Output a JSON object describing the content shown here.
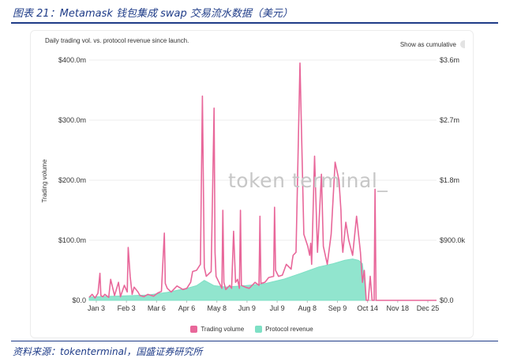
{
  "report": {
    "title": "图表 21：Metamask 钱包集成 swap 交易流水数据（美元）",
    "source": "资料来源：tokenterminal，国盛证券研究所"
  },
  "card": {
    "subtitle": "Daily trading vol. vs. protocol revenue since launch.",
    "cumulative_label": "Show as cumulative",
    "watermark": "token terminal_"
  },
  "colors": {
    "trading_volume": "#e8679a",
    "protocol_revenue": "#7ee0c5",
    "heading": "#1f3c88"
  },
  "chart_data": {
    "type": "area",
    "ylabel": "Trading volume",
    "left_axis": {
      "ticks": [
        "$0.0",
        "$100.0m",
        "$200.0m",
        "$300.0m",
        "$400.0m"
      ],
      "ylim": [
        0,
        400
      ]
    },
    "right_axis": {
      "ticks": [
        "$0.0",
        "$900.0k",
        "$1.8m",
        "$2.7m",
        "$3.6m"
      ],
      "ylim": [
        0,
        3.6
      ]
    },
    "x_ticks": [
      "Jan 3",
      "Feb 3",
      "Mar 6",
      "Apr 6",
      "May 8",
      "Jun 9",
      "Jul 9",
      "Aug 8",
      "Sep 9",
      "Oct 14",
      "Nov 18",
      "Dec 25"
    ],
    "grid": true,
    "legend_position": "bottom",
    "series": [
      {
        "name": "Trading volume",
        "unit": "$m",
        "x": [
          0,
          3,
          6,
          9,
          11,
          12,
          14,
          16,
          20,
          22,
          26,
          30,
          32,
          36,
          39,
          40,
          42,
          44,
          46,
          50,
          52,
          56,
          60,
          66,
          70,
          74,
          77,
          78,
          80,
          84,
          90,
          96,
          100,
          104,
          106,
          110,
          114,
          116,
          118,
          120,
          125,
          128,
          129,
          130,
          133,
          136,
          137,
          138,
          140,
          144,
          146,
          148,
          150,
          152,
          154,
          155,
          156,
          160,
          164,
          170,
          174,
          175,
          176,
          180,
          184,
          189,
          190,
          191,
          194,
          198,
          202,
          207,
          208,
          209,
          212,
          216,
          220,
          224,
          226,
          227,
          228,
          231,
          234,
          238,
          240,
          244,
          248,
          252,
          256,
          258,
          259,
          260,
          263,
          266,
          270,
          274,
          277,
          278,
          280,
          282,
          284,
          286,
          288,
          290,
          292,
          293,
          294,
          296,
          298,
          300,
          302,
          304,
          306,
          308,
          310,
          312,
          314,
          316,
          318,
          320,
          322,
          324,
          326,
          328,
          330,
          332,
          334,
          336,
          338,
          340,
          342,
          344,
          346,
          348,
          350,
          352,
          354,
          356
        ],
        "values": [
          5,
          10,
          4,
          12,
          45,
          8,
          6,
          10,
          5,
          35,
          8,
          30,
          6,
          25,
          14,
          88,
          40,
          10,
          22,
          14,
          8,
          6,
          10,
          7,
          12,
          15,
          112,
          28,
          20,
          14,
          24,
          18,
          20,
          30,
          48,
          50,
          60,
          340,
          55,
          40,
          48,
          320,
          80,
          40,
          30,
          20,
          150,
          30,
          18,
          25,
          20,
          115,
          30,
          35,
          20,
          150,
          25,
          22,
          20,
          30,
          25,
          140,
          28,
          30,
          38,
          40,
          155,
          50,
          40,
          42,
          60,
          52,
          65,
          75,
          80,
          395,
          110,
          90,
          75,
          95,
          60,
          240,
          80,
          210,
          90,
          60,
          110,
          230,
          200,
          150,
          100,
          80,
          130,
          100,
          75,
          140,
          95,
          80,
          30,
          50,
          0,
          0,
          40,
          0,
          0,
          185,
          0,
          0,
          0,
          0,
          0,
          0,
          0,
          0,
          0,
          0,
          0,
          0,
          0,
          0,
          0,
          0,
          0,
          0,
          0,
          0,
          0,
          0,
          0,
          0,
          0,
          0,
          0,
          0,
          0,
          0,
          0,
          0
        ]
      },
      {
        "name": "Protocol revenue",
        "unit": "$m",
        "x": [
          0,
          20,
          40,
          60,
          80,
          100,
          110,
          118,
          128,
          140,
          160,
          180,
          200,
          220,
          235,
          250,
          262,
          270,
          276,
          280,
          284
        ],
        "values": [
          0.05,
          0.06,
          0.07,
          0.08,
          0.12,
          0.18,
          0.22,
          0.3,
          0.22,
          0.2,
          0.22,
          0.25,
          0.32,
          0.42,
          0.5,
          0.55,
          0.6,
          0.62,
          0.6,
          0.55,
          0.0
        ]
      }
    ]
  }
}
